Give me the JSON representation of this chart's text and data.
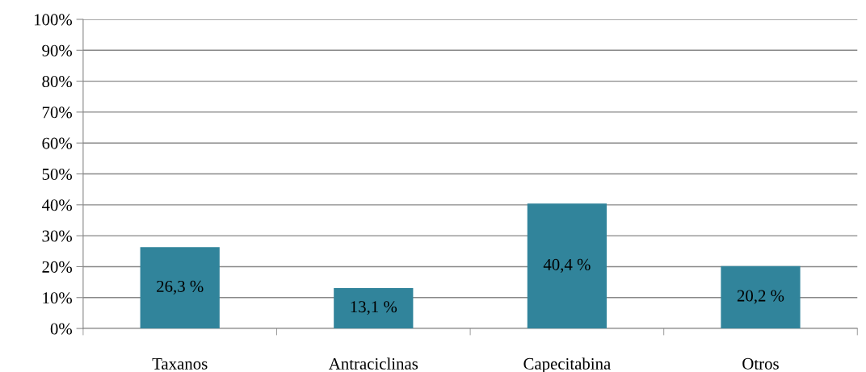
{
  "chart_data": {
    "type": "bar",
    "categories": [
      "Taxanos",
      "Antraciclinas",
      "Capecitabina",
      "Otros"
    ],
    "values": [
      26.3,
      13.1,
      40.4,
      20.2
    ],
    "value_labels": [
      "26,3 %",
      "13,1 %",
      "40,4 %",
      "20,2 %"
    ],
    "color": "#31849b",
    "ylim": [
      0,
      100
    ],
    "yticks": [
      {
        "value": 0,
        "label": "0%"
      },
      {
        "value": 10,
        "label": "10%"
      },
      {
        "value": 20,
        "label": "20%"
      },
      {
        "value": 30,
        "label": "30%"
      },
      {
        "value": 40,
        "label": "40%"
      },
      {
        "value": 50,
        "label": "50%"
      },
      {
        "value": 60,
        "label": "60%"
      },
      {
        "value": 70,
        "label": "70%"
      },
      {
        "value": 80,
        "label": "80%"
      },
      {
        "value": 90,
        "label": "90%"
      },
      {
        "value": 100,
        "label": "100%"
      }
    ],
    "grid": "y",
    "legend": false
  }
}
